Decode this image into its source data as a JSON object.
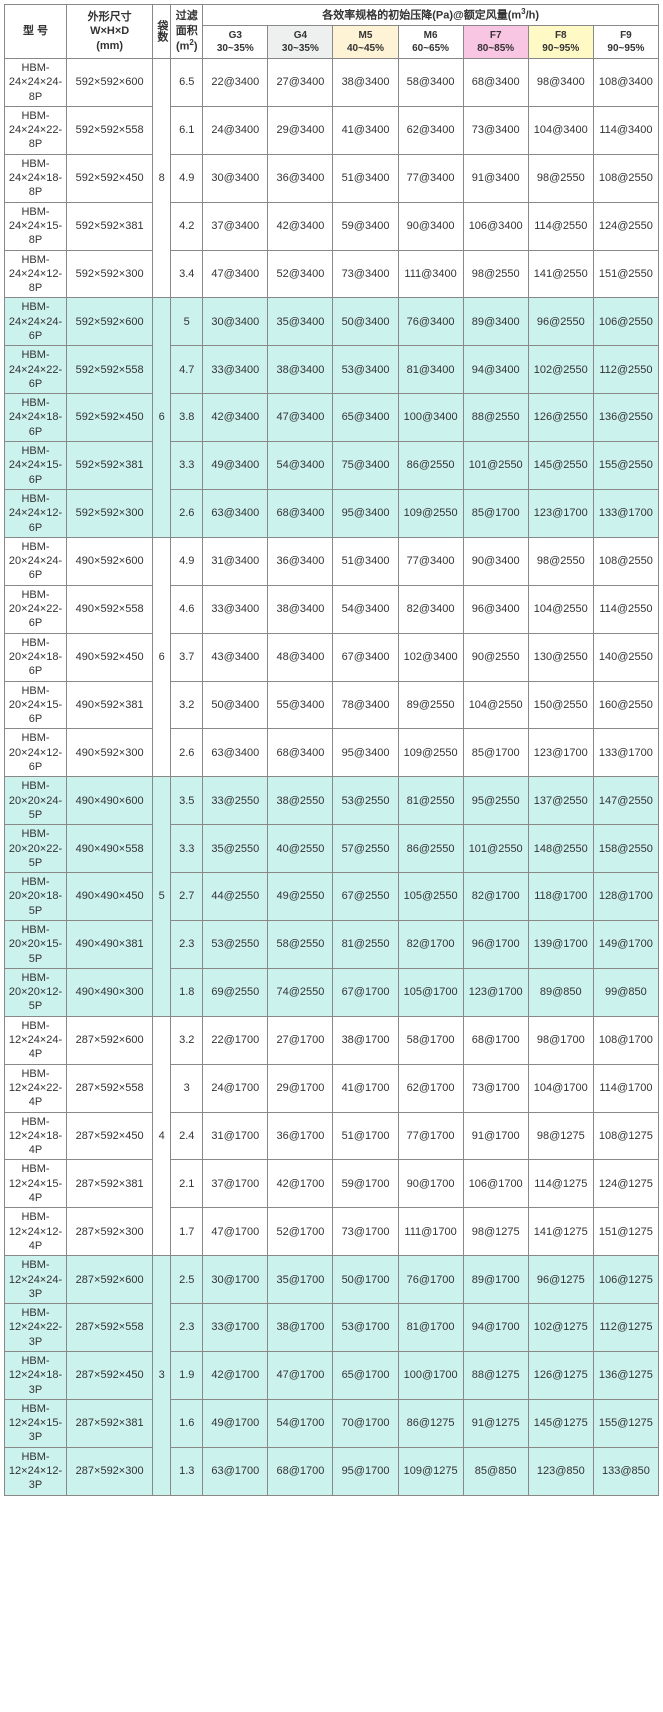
{
  "headers": {
    "model": "型 号",
    "dim": "外形尺寸\nW×H×D\n(mm)",
    "bag": "袋数",
    "area": "过滤面积 (m²)",
    "effTitle": "各效率规格的初始压降(Pa)@额定风量(m³/h)",
    "effCols": [
      {
        "id": "G3",
        "label": "G3",
        "range": "30~35%",
        "bg": "#ffffff"
      },
      {
        "id": "G4",
        "label": "G4",
        "range": "30~35%",
        "bg": "#eef0ef"
      },
      {
        "id": "M5",
        "label": "M5",
        "range": "40~45%",
        "bg": "#fff3d6"
      },
      {
        "id": "M6",
        "label": "M6",
        "range": "60~65%",
        "bg": "#ffffff"
      },
      {
        "id": "F7",
        "label": "F7",
        "range": "80~85%",
        "bg": "#f8c5e3"
      },
      {
        "id": "F8",
        "label": "F8",
        "range": "90~95%",
        "bg": "#fff9c6"
      },
      {
        "id": "F9",
        "label": "F9",
        "range": "90~95%",
        "bg": "#ffffff"
      }
    ]
  },
  "groups": [
    {
      "bag": "8",
      "tint": false,
      "rows": [
        {
          "model": "HBM-24×24×24-8P",
          "dim": "592×592×600",
          "area": "6.5",
          "v": [
            "22@3400",
            "27@3400",
            "38@3400",
            "58@3400",
            "68@3400",
            "98@3400",
            "108@3400"
          ]
        },
        {
          "model": "HBM-24×24×22-8P",
          "dim": "592×592×558",
          "area": "6.1",
          "v": [
            "24@3400",
            "29@3400",
            "41@3400",
            "62@3400",
            "73@3400",
            "104@3400",
            "114@3400"
          ]
        },
        {
          "model": "HBM-24×24×18-8P",
          "dim": "592×592×450",
          "area": "4.9",
          "v": [
            "30@3400",
            "36@3400",
            "51@3400",
            "77@3400",
            "91@3400",
            "98@2550",
            "108@2550"
          ]
        },
        {
          "model": "HBM-24×24×15-8P",
          "dim": "592×592×381",
          "area": "4.2",
          "v": [
            "37@3400",
            "42@3400",
            "59@3400",
            "90@3400",
            "106@3400",
            "114@2550",
            "124@2550"
          ]
        },
        {
          "model": "HBM-24×24×12-8P",
          "dim": "592×592×300",
          "area": "3.4",
          "v": [
            "47@3400",
            "52@3400",
            "73@3400",
            "111@3400",
            "98@2550",
            "141@2550",
            "151@2550"
          ]
        }
      ]
    },
    {
      "bag": "6",
      "tint": true,
      "rows": [
        {
          "model": "HBM-24×24×24-6P",
          "dim": "592×592×600",
          "area": "5",
          "v": [
            "30@3400",
            "35@3400",
            "50@3400",
            "76@3400",
            "89@3400",
            "96@2550",
            "106@2550"
          ]
        },
        {
          "model": "HBM-24×24×22-6P",
          "dim": "592×592×558",
          "area": "4.7",
          "v": [
            "33@3400",
            "38@3400",
            "53@3400",
            "81@3400",
            "94@3400",
            "102@2550",
            "112@2550"
          ]
        },
        {
          "model": "HBM-24×24×18-6P",
          "dim": "592×592×450",
          "area": "3.8",
          "v": [
            "42@3400",
            "47@3400",
            "65@3400",
            "100@3400",
            "88@2550",
            "126@2550",
            "136@2550"
          ]
        },
        {
          "model": "HBM-24×24×15-6P",
          "dim": "592×592×381",
          "area": "3.3",
          "v": [
            "49@3400",
            "54@3400",
            "75@3400",
            "86@2550",
            "101@2550",
            "145@2550",
            "155@2550"
          ]
        },
        {
          "model": "HBM-24×24×12-6P",
          "dim": "592×592×300",
          "area": "2.6",
          "v": [
            "63@3400",
            "68@3400",
            "95@3400",
            "109@2550",
            "85@1700",
            "123@1700",
            "133@1700"
          ]
        }
      ]
    },
    {
      "bag": "6",
      "tint": false,
      "rows": [
        {
          "model": "HBM-20×24×24-6P",
          "dim": "490×592×600",
          "area": "4.9",
          "v": [
            "31@3400",
            "36@3400",
            "51@3400",
            "77@3400",
            "90@3400",
            "98@2550",
            "108@2550"
          ]
        },
        {
          "model": "HBM-20×24×22-6P",
          "dim": "490×592×558",
          "area": "4.6",
          "v": [
            "33@3400",
            "38@3400",
            "54@3400",
            "82@3400",
            "96@3400",
            "104@2550",
            "114@2550"
          ]
        },
        {
          "model": "HBM-20×24×18-6P",
          "dim": "490×592×450",
          "area": "3.7",
          "v": [
            "43@3400",
            "48@3400",
            "67@3400",
            "102@3400",
            "90@2550",
            "130@2550",
            "140@2550"
          ]
        },
        {
          "model": "HBM-20×24×15-6P",
          "dim": "490×592×381",
          "area": "3.2",
          "v": [
            "50@3400",
            "55@3400",
            "78@3400",
            "89@2550",
            "104@2550",
            "150@2550",
            "160@2550"
          ]
        },
        {
          "model": "HBM-20×24×12-6P",
          "dim": "490×592×300",
          "area": "2.6",
          "v": [
            "63@3400",
            "68@3400",
            "95@3400",
            "109@2550",
            "85@1700",
            "123@1700",
            "133@1700"
          ]
        }
      ]
    },
    {
      "bag": "5",
      "tint": true,
      "rows": [
        {
          "model": "HBM-20×20×24-5P",
          "dim": "490×490×600",
          "area": "3.5",
          "v": [
            "33@2550",
            "38@2550",
            "53@2550",
            "81@2550",
            "95@2550",
            "137@2550",
            "147@2550"
          ]
        },
        {
          "model": "HBM-20×20×22-5P",
          "dim": "490×490×558",
          "area": "3.3",
          "v": [
            "35@2550",
            "40@2550",
            "57@2550",
            "86@2550",
            "101@2550",
            "148@2550",
            "158@2550"
          ]
        },
        {
          "model": "HBM-20×20×18-5P",
          "dim": "490×490×450",
          "area": "2.7",
          "v": [
            "44@2550",
            "49@2550",
            "67@2550",
            "105@2550",
            "82@1700",
            "118@1700",
            "128@1700"
          ]
        },
        {
          "model": "HBM-20×20×15-5P",
          "dim": "490×490×381",
          "area": "2.3",
          "v": [
            "53@2550",
            "58@2550",
            "81@2550",
            "82@1700",
            "96@1700",
            "139@1700",
            "149@1700"
          ]
        },
        {
          "model": "HBM-20×20×12-5P",
          "dim": "490×490×300",
          "area": "1.8",
          "v": [
            "69@2550",
            "74@2550",
            "67@1700",
            "105@1700",
            "123@1700",
            "89@850",
            "99@850"
          ]
        }
      ]
    },
    {
      "bag": "4",
      "tint": false,
      "rows": [
        {
          "model": "HBM-12×24×24-4P",
          "dim": "287×592×600",
          "area": "3.2",
          "v": [
            "22@1700",
            "27@1700",
            "38@1700",
            "58@1700",
            "68@1700",
            "98@1700",
            "108@1700"
          ]
        },
        {
          "model": "HBM-12×24×22-4P",
          "dim": "287×592×558",
          "area": "3",
          "v": [
            "24@1700",
            "29@1700",
            "41@1700",
            "62@1700",
            "73@1700",
            "104@1700",
            "114@1700"
          ]
        },
        {
          "model": "HBM-12×24×18-4P",
          "dim": "287×592×450",
          "area": "2.4",
          "v": [
            "31@1700",
            "36@1700",
            "51@1700",
            "77@1700",
            "91@1700",
            "98@1275",
            "108@1275"
          ]
        },
        {
          "model": "HBM-12×24×15-4P",
          "dim": "287×592×381",
          "area": "2.1",
          "v": [
            "37@1700",
            "42@1700",
            "59@1700",
            "90@1700",
            "106@1700",
            "114@1275",
            "124@1275"
          ]
        },
        {
          "model": "HBM-12×24×12-4P",
          "dim": "287×592×300",
          "area": "1.7",
          "v": [
            "47@1700",
            "52@1700",
            "73@1700",
            "111@1700",
            "98@1275",
            "141@1275",
            "151@1275"
          ]
        }
      ]
    },
    {
      "bag": "3",
      "tint": true,
      "rows": [
        {
          "model": "HBM-12×24×24-3P",
          "dim": "287×592×600",
          "area": "2.5",
          "v": [
            "30@1700",
            "35@1700",
            "50@1700",
            "76@1700",
            "89@1700",
            "96@1275",
            "106@1275"
          ]
        },
        {
          "model": "HBM-12×24×22-3P",
          "dim": "287×592×558",
          "area": "2.3",
          "v": [
            "33@1700",
            "38@1700",
            "53@1700",
            "81@1700",
            "94@1700",
            "102@1275",
            "112@1275"
          ]
        },
        {
          "model": "HBM-12×24×18-3P",
          "dim": "287×592×450",
          "area": "1.9",
          "v": [
            "42@1700",
            "47@1700",
            "65@1700",
            "100@1700",
            "88@1275",
            "126@1275",
            "136@1275"
          ]
        },
        {
          "model": "HBM-12×24×15-3P",
          "dim": "287×592×381",
          "area": "1.6",
          "v": [
            "49@1700",
            "54@1700",
            "70@1700",
            "86@1275",
            "91@1275",
            "145@1275",
            "155@1275"
          ]
        },
        {
          "model": "HBM-12×24×12-3P",
          "dim": "287×592×300",
          "area": "1.3",
          "v": [
            "63@1700",
            "68@1700",
            "95@1700",
            "109@1275",
            "85@850",
            "123@850",
            "133@850"
          ]
        }
      ]
    }
  ]
}
